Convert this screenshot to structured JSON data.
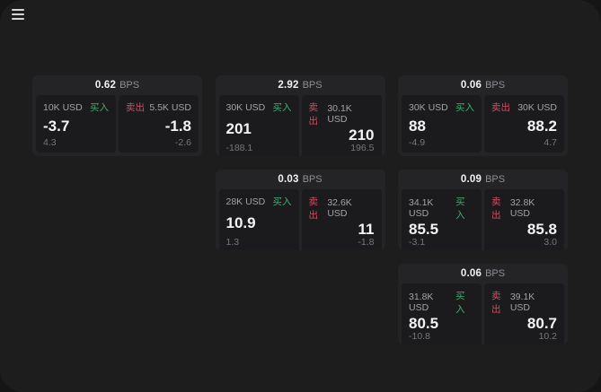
{
  "window": {
    "outer_background": "#151515",
    "background": "#1d1d1e"
  },
  "header": {
    "menu_icon": "hamburger-menu"
  },
  "colors": {
    "buy": "#3fae6d",
    "sell": "#cd4f63",
    "card_bg": "#242426",
    "panel_bg": "#1b1b1d"
  },
  "labels": {
    "bps_unit": "BPS",
    "buy": "买入",
    "sell": "卖出"
  },
  "cards": [
    {
      "bps_value": "0.62",
      "bps_unit": "BPS",
      "slot": {
        "row": 1,
        "col": 1
      },
      "buy": {
        "amount": "10K USD",
        "side_label": "买入",
        "value": "-3.7",
        "delta": "4.3"
      },
      "sell": {
        "side_label": "卖出",
        "amount": "5.5K USD",
        "value": "-1.8",
        "delta": "-2.6"
      }
    },
    {
      "bps_value": "2.92",
      "bps_unit": "BPS",
      "slot": {
        "row": 1,
        "col": 2
      },
      "buy": {
        "amount": "30K USD",
        "side_label": "买入",
        "value": "201",
        "delta": "-188.1"
      },
      "sell": {
        "side_label": "卖出",
        "amount": "30.1K USD",
        "value": "210",
        "delta": "196.5"
      }
    },
    {
      "bps_value": "0.06",
      "bps_unit": "BPS",
      "slot": {
        "row": 1,
        "col": 3
      },
      "buy": {
        "amount": "30K USD",
        "side_label": "买入",
        "value": "88",
        "delta": "-4.9"
      },
      "sell": {
        "side_label": "卖出",
        "amount": "30K USD",
        "value": "88.2",
        "delta": "4.7"
      }
    },
    {
      "bps_value": "0.03",
      "bps_unit": "BPS",
      "slot": {
        "row": 2,
        "col": 2
      },
      "buy": {
        "amount": "28K USD",
        "side_label": "买入",
        "value": "10.9",
        "delta": "1.3"
      },
      "sell": {
        "side_label": "卖出",
        "amount": "32.6K USD",
        "value": "11",
        "delta": "-1.8"
      }
    },
    {
      "bps_value": "0.09",
      "bps_unit": "BPS",
      "slot": {
        "row": 2,
        "col": 3
      },
      "buy": {
        "amount": "34.1K USD",
        "side_label": "买入",
        "value": "85.5",
        "delta": "-3.1"
      },
      "sell": {
        "side_label": "卖出",
        "amount": "32.8K USD",
        "value": "85.8",
        "delta": "3.0"
      }
    },
    {
      "bps_value": "0.06",
      "bps_unit": "BPS",
      "slot": {
        "row": 3,
        "col": 3
      },
      "buy": {
        "amount": "31.8K USD",
        "side_label": "买入",
        "value": "80.5",
        "delta": "-10.8"
      },
      "sell": {
        "side_label": "卖出",
        "amount": "39.1K USD",
        "value": "80.7",
        "delta": "10.2"
      }
    }
  ]
}
